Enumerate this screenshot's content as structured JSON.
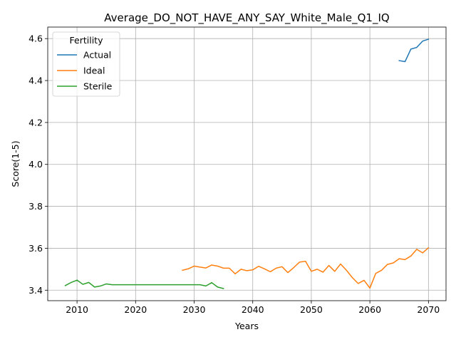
{
  "chart_data": {
    "type": "line",
    "title": "Average_DO_NOT_HAVE_ANY_SAY_White_Male_Q1_IQ",
    "xlabel": "Years",
    "ylabel": "Score(1-5)",
    "xlim": [
      2005,
      2073
    ],
    "ylim": [
      3.35,
      4.655
    ],
    "x_ticks": [
      2010,
      2020,
      2030,
      2040,
      2050,
      2060,
      2070
    ],
    "y_ticks": [
      3.4,
      3.6,
      3.8,
      4.0,
      4.2,
      4.4,
      4.6
    ],
    "x_tick_labels": [
      "2010",
      "2020",
      "2030",
      "2040",
      "2050",
      "2060",
      "2070"
    ],
    "y_tick_labels": [
      "3.4",
      "3.6",
      "3.8",
      "4.0",
      "4.2",
      "4.4",
      "4.6"
    ],
    "grid": true,
    "legend": {
      "title": "Fertility",
      "position": "top-left"
    },
    "series": [
      {
        "name": "Actual",
        "color": "#1f77b4",
        "x": [
          2065,
          2066,
          2067,
          2068,
          2069,
          2070
        ],
        "y": [
          4.495,
          4.49,
          4.55,
          4.558,
          4.588,
          4.597
        ]
      },
      {
        "name": "Ideal",
        "color": "#ff7f0e",
        "x": [
          2028,
          2029,
          2030,
          2031,
          2032,
          2033,
          2034,
          2035,
          2036,
          2037,
          2038,
          2039,
          2040,
          2041,
          2042,
          2043,
          2044,
          2045,
          2046,
          2047,
          2048,
          2049,
          2050,
          2051,
          2052,
          2053,
          2054,
          2055,
          2056,
          2057,
          2058,
          2059,
          2060,
          2061,
          2062,
          2063,
          2064,
          2065,
          2066,
          2067,
          2068,
          2069,
          2070
        ],
        "y": [
          3.495,
          3.502,
          3.515,
          3.51,
          3.506,
          3.52,
          3.515,
          3.505,
          3.505,
          3.478,
          3.5,
          3.493,
          3.497,
          3.514,
          3.502,
          3.488,
          3.505,
          3.512,
          3.484,
          3.508,
          3.534,
          3.538,
          3.49,
          3.5,
          3.486,
          3.518,
          3.49,
          3.525,
          3.495,
          3.46,
          3.432,
          3.447,
          3.41,
          3.48,
          3.495,
          3.523,
          3.53,
          3.55,
          3.546,
          3.563,
          3.595,
          3.578,
          3.602
        ]
      },
      {
        "name": "Sterile",
        "color": "#2ca02c",
        "x": [
          2008,
          2009,
          2010,
          2011,
          2012,
          2013,
          2014,
          2015,
          2016,
          2017,
          2018,
          2019,
          2020,
          2021,
          2022,
          2023,
          2024,
          2025,
          2026,
          2027,
          2028,
          2029,
          2030,
          2031,
          2032,
          2033,
          2034,
          2035
        ],
        "y": [
          3.422,
          3.437,
          3.448,
          3.428,
          3.437,
          3.415,
          3.42,
          3.43,
          3.426,
          3.426,
          3.426,
          3.426,
          3.426,
          3.426,
          3.426,
          3.426,
          3.426,
          3.426,
          3.426,
          3.426,
          3.426,
          3.426,
          3.426,
          3.426,
          3.42,
          3.436,
          3.415,
          3.408
        ]
      }
    ]
  }
}
